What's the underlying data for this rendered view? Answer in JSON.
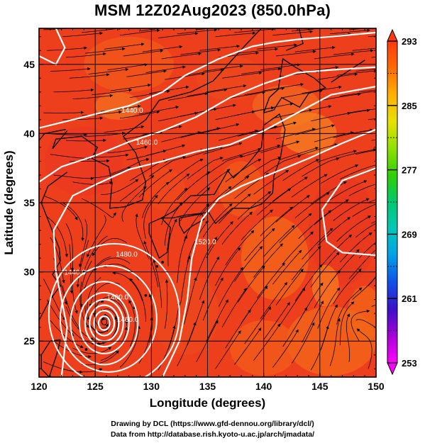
{
  "title": "MSM 12Z02Aug2023 (850.0hPa)",
  "credits": {
    "line1": "Drawing by DCL (https://www.gfd-dennou.org/library/dcl/)",
    "line2": "Data from http://database.rish.kyoto-u.ac.jp/arch/jmadata/"
  },
  "chart_data": {
    "type": "heatmap",
    "xlabel": "Longitude (degrees)",
    "ylabel": "Latitude  (degrees)",
    "xlim": [
      120,
      150
    ],
    "ylim": [
      22.4,
      47.6
    ],
    "x_ticks": [
      "120",
      "125",
      "130",
      "135",
      "140",
      "145",
      "150"
    ],
    "y_ticks": [
      "25",
      "30",
      "35",
      "40",
      "45"
    ],
    "grid": true,
    "colorbar": {
      "min": 253,
      "max": 293,
      "tick_labels": [
        "293",
        "285",
        "277",
        "269",
        "261",
        "253"
      ],
      "tick_values": [
        293,
        285,
        277,
        269,
        261,
        253
      ],
      "colors": [
        "#ff00ff",
        "#a800d8",
        "#3a10c8",
        "#1050e8",
        "#00a0e8",
        "#00c8b8",
        "#00c870",
        "#30d000",
        "#90e000",
        "#e8e000",
        "#ffb000",
        "#ff6a00",
        "#ff3a10"
      ]
    },
    "contour_labels": [
      {
        "text": "1440.0",
        "lon": 128.3,
        "lat": 41.5
      },
      {
        "text": "1460.0",
        "lon": 129.6,
        "lat": 39.2
      },
      {
        "text": "1480.0",
        "lon": 127.8,
        "lat": 31.1
      },
      {
        "text": "1520.0",
        "lon": 134.8,
        "lat": 32.0
      },
      {
        "text": "1440.0",
        "lon": 123.2,
        "lat": 29.8
      },
      {
        "text": "1400.0",
        "lon": 127.0,
        "lat": 28.0
      },
      {
        "text": "1460.0",
        "lon": 127.9,
        "lat": 26.4
      }
    ],
    "typhoon_center": {
      "lon": 125.8,
      "lat": 26.3
    }
  }
}
